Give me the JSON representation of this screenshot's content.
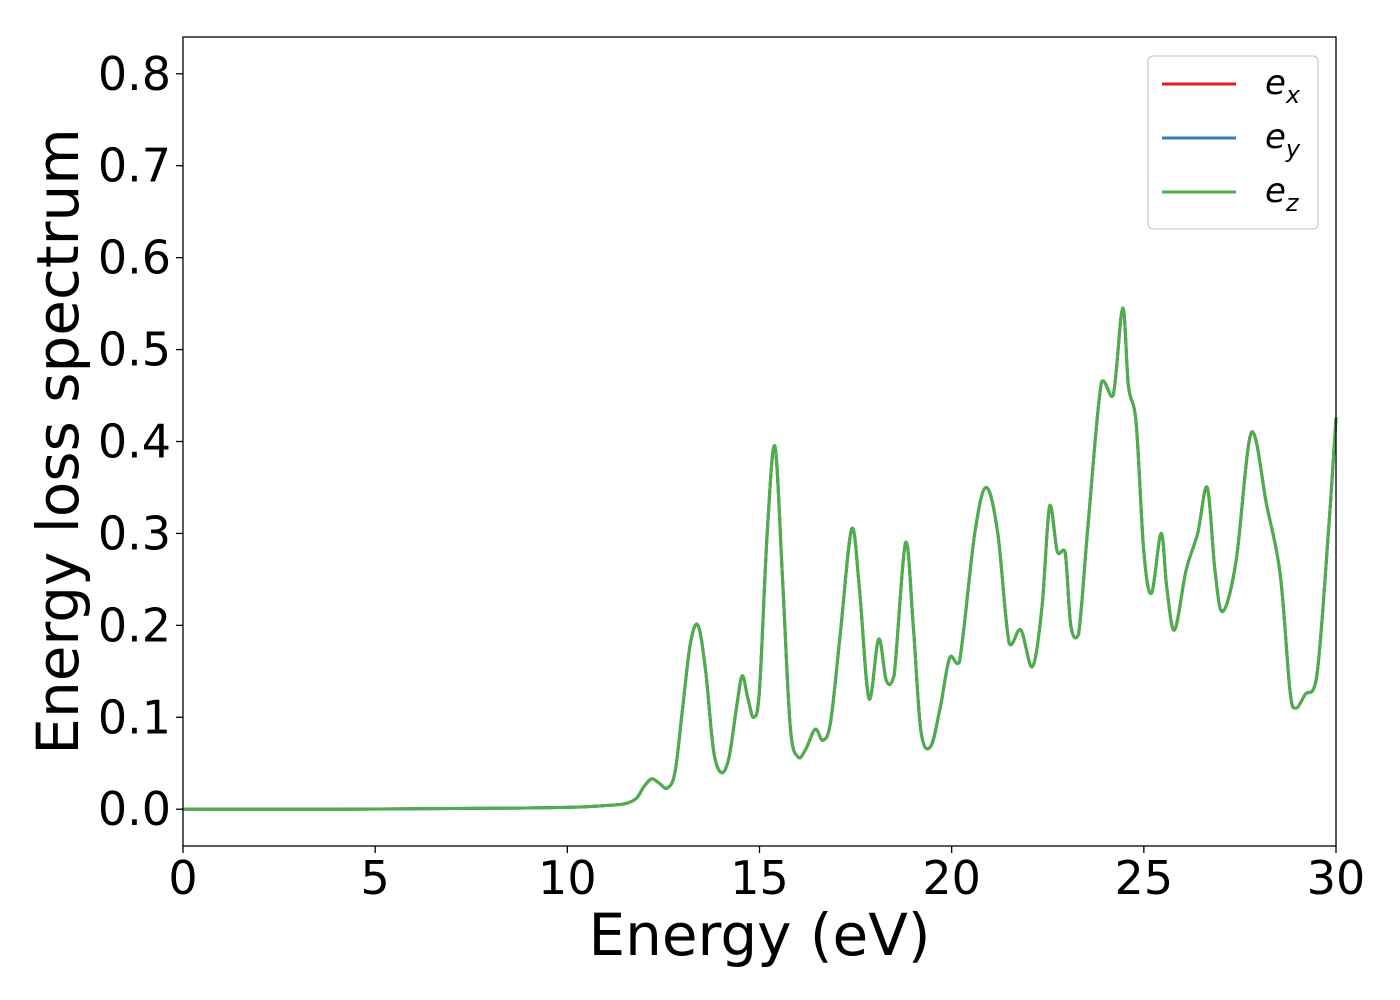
{
  "chart_data": {
    "type": "line",
    "title": "",
    "xlabel": "Energy (eV)",
    "ylabel": "Energy loss spectrum",
    "xlim": [
      0,
      30
    ],
    "ylim": [
      -0.04,
      0.84
    ],
    "x_ticks": [
      0,
      5,
      10,
      15,
      20,
      25,
      30
    ],
    "x_tick_labels": [
      "0",
      "5",
      "10",
      "15",
      "20",
      "25",
      "30"
    ],
    "y_ticks": [
      0.0,
      0.1,
      0.2,
      0.3,
      0.4,
      0.5,
      0.6,
      0.7,
      0.8
    ],
    "y_tick_labels": [
      "0.0",
      "0.1",
      "0.2",
      "0.3",
      "0.4",
      "0.5",
      "0.6",
      "0.7",
      "0.8"
    ],
    "grid": false,
    "legend_position": "top-right",
    "x": [
      0,
      2,
      4,
      6,
      8,
      10,
      11,
      11.5,
      11.8,
      12.0,
      12.2,
      12.4,
      12.6,
      12.8,
      13.0,
      13.2,
      13.4,
      13.6,
      13.8,
      14.0,
      14.2,
      14.4,
      14.55,
      14.7,
      14.85,
      15.0,
      15.2,
      15.4,
      15.6,
      15.8,
      16.0,
      16.2,
      16.45,
      16.65,
      16.85,
      17.1,
      17.4,
      17.6,
      17.85,
      18.1,
      18.3,
      18.5,
      18.8,
      19.0,
      19.2,
      19.45,
      19.7,
      19.95,
      20.2,
      20.6,
      20.9,
      21.2,
      21.5,
      21.8,
      22.1,
      22.35,
      22.55,
      22.75,
      22.95,
      23.1,
      23.3,
      23.55,
      23.9,
      24.2,
      24.45,
      24.6,
      24.8,
      25.0,
      25.2,
      25.45,
      25.6,
      25.8,
      26.1,
      26.4,
      26.65,
      26.85,
      27.05,
      27.4,
      27.8,
      28.2,
      28.55,
      28.8,
      28.95,
      29.2,
      29.5,
      29.8,
      30.0
    ],
    "series": [
      {
        "name": "e_x",
        "color": "#e41a1c",
        "values": [
          0.0,
          0.0,
          0.0,
          0.0005,
          0.001,
          0.002,
          0.004,
          0.006,
          0.012,
          0.025,
          0.033,
          0.028,
          0.023,
          0.04,
          0.11,
          0.18,
          0.2,
          0.15,
          0.065,
          0.04,
          0.055,
          0.11,
          0.145,
          0.12,
          0.1,
          0.13,
          0.3,
          0.395,
          0.25,
          0.09,
          0.057,
          0.065,
          0.087,
          0.075,
          0.095,
          0.19,
          0.305,
          0.24,
          0.12,
          0.185,
          0.14,
          0.145,
          0.29,
          0.2,
          0.085,
          0.068,
          0.11,
          0.165,
          0.16,
          0.3,
          0.35,
          0.3,
          0.18,
          0.195,
          0.155,
          0.22,
          0.33,
          0.28,
          0.28,
          0.2,
          0.19,
          0.31,
          0.465,
          0.45,
          0.545,
          0.46,
          0.42,
          0.28,
          0.235,
          0.3,
          0.24,
          0.195,
          0.26,
          0.3,
          0.35,
          0.26,
          0.215,
          0.27,
          0.41,
          0.33,
          0.255,
          0.13,
          0.11,
          0.125,
          0.145,
          0.3,
          0.425
        ]
      },
      {
        "name": "e_y",
        "color": "#377eb8",
        "values": [
          0.0,
          0.0,
          0.0,
          0.0005,
          0.001,
          0.002,
          0.004,
          0.006,
          0.012,
          0.025,
          0.033,
          0.028,
          0.023,
          0.04,
          0.11,
          0.18,
          0.2,
          0.15,
          0.065,
          0.04,
          0.055,
          0.11,
          0.145,
          0.12,
          0.1,
          0.13,
          0.3,
          0.395,
          0.25,
          0.09,
          0.057,
          0.065,
          0.087,
          0.075,
          0.095,
          0.19,
          0.305,
          0.24,
          0.12,
          0.185,
          0.14,
          0.145,
          0.29,
          0.2,
          0.085,
          0.068,
          0.11,
          0.165,
          0.16,
          0.3,
          0.35,
          0.3,
          0.18,
          0.195,
          0.155,
          0.22,
          0.33,
          0.28,
          0.28,
          0.2,
          0.19,
          0.31,
          0.465,
          0.45,
          0.545,
          0.46,
          0.42,
          0.28,
          0.235,
          0.3,
          0.24,
          0.195,
          0.26,
          0.3,
          0.35,
          0.26,
          0.215,
          0.27,
          0.41,
          0.33,
          0.255,
          0.13,
          0.11,
          0.125,
          0.145,
          0.3,
          0.425
        ]
      },
      {
        "name": "e_z",
        "color": "#4daf4a",
        "values": [
          0.0,
          0.0,
          0.0,
          0.0005,
          0.001,
          0.002,
          0.004,
          0.006,
          0.012,
          0.025,
          0.033,
          0.028,
          0.023,
          0.04,
          0.11,
          0.18,
          0.2,
          0.15,
          0.065,
          0.04,
          0.055,
          0.11,
          0.145,
          0.12,
          0.1,
          0.13,
          0.3,
          0.395,
          0.25,
          0.09,
          0.057,
          0.065,
          0.087,
          0.075,
          0.095,
          0.19,
          0.305,
          0.24,
          0.12,
          0.185,
          0.14,
          0.145,
          0.29,
          0.2,
          0.085,
          0.068,
          0.11,
          0.165,
          0.16,
          0.3,
          0.35,
          0.3,
          0.18,
          0.195,
          0.155,
          0.22,
          0.33,
          0.28,
          0.28,
          0.2,
          0.19,
          0.31,
          0.465,
          0.45,
          0.545,
          0.46,
          0.42,
          0.28,
          0.235,
          0.3,
          0.24,
          0.195,
          0.26,
          0.3,
          0.35,
          0.26,
          0.215,
          0.27,
          0.41,
          0.33,
          0.255,
          0.13,
          0.11,
          0.125,
          0.145,
          0.3,
          0.425
        ]
      }
    ],
    "legend": [
      {
        "base": "e",
        "sub": "x",
        "color": "#e41a1c"
      },
      {
        "base": "e",
        "sub": "y",
        "color": "#377eb8"
      },
      {
        "base": "e",
        "sub": "z",
        "color": "#4daf4a"
      }
    ]
  }
}
